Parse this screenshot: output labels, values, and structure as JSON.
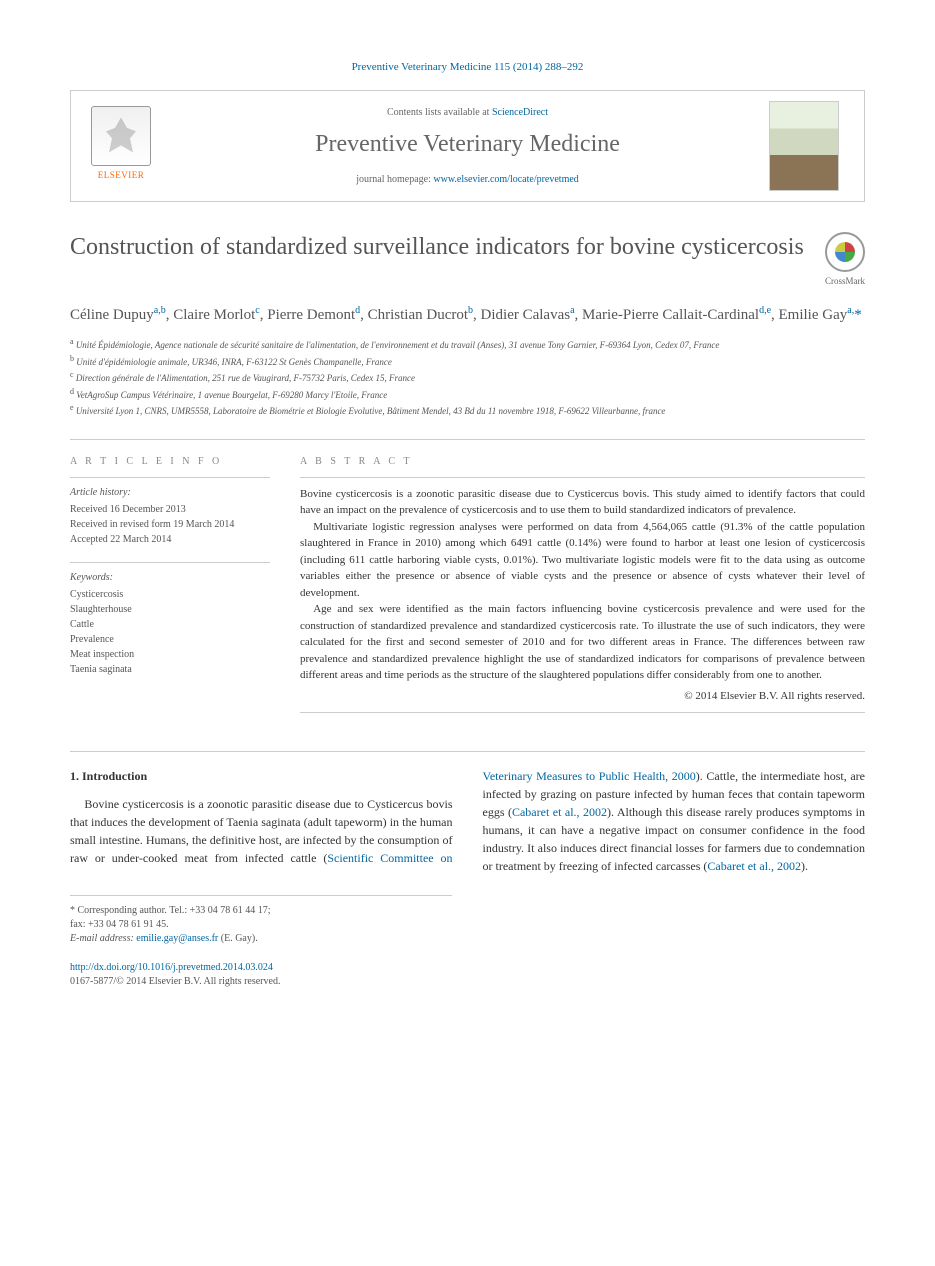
{
  "citation": "Preventive Veterinary Medicine 115 (2014) 288–292",
  "banner": {
    "contents_prefix": "Contents lists available at ",
    "contents_link": "ScienceDirect",
    "journal": "Preventive Veterinary Medicine",
    "homepage_prefix": "journal homepage: ",
    "homepage_url": "www.elsevier.com/locate/prevetmed",
    "publisher": "ELSEVIER"
  },
  "crossmark": "CrossMark",
  "title": "Construction of standardized surveillance indicators for bovine cysticercosis",
  "authors_html": "Céline Dupuy<sup>a,b</sup>, Claire Morlot<sup>c</sup>, Pierre Demont<sup>d</sup>, Christian Ducrot<sup>b</sup>, Didier Calavas<sup>a</sup>, Marie-Pierre Callait-Cardinal<sup>d,e</sup>, Emilie Gay<sup>a,</sup><span class='ast'>*</span>",
  "affiliations": [
    "a Unité Épidémiologie, Agence nationale de sécurité sanitaire de l'alimentation, de l'environnement et du travail (Anses), 31 avenue Tony Garnier, F-69364 Lyon, Cedex 07, France",
    "b Unité d'épidémiologie animale, UR346, INRA, F-63122 St Genès Champanelle, France",
    "c Direction générale de l'Alimentation, 251 rue de Vaugirard, F-75732 Paris, Cedex 15, France",
    "d VetAgroSup Campus Vétérinaire, 1 avenue Bourgelat, F-69280 Marcy l'Etoile, France",
    "e Université Lyon 1, CNRS, UMR5558, Laboratoire de Biométrie et Biologie Evolutive, Bâtiment Mendel, 43 Bd du 11 novembre 1918, F-69622 Villeurbanne, france"
  ],
  "article_info": {
    "heading": "A R T I C L E   I N F O",
    "history_label": "Article history:",
    "history": [
      "Received 16 December 2013",
      "Received in revised form 19 March 2014",
      "Accepted 22 March 2014"
    ],
    "keywords_label": "Keywords:",
    "keywords": [
      "Cysticercosis",
      "Slaughterhouse",
      "Cattle",
      "Prevalence",
      "Meat inspection",
      "Taenia saginata"
    ]
  },
  "abstract": {
    "heading": "A B S T R A C T",
    "paragraphs": [
      "Bovine cysticercosis is a zoonotic parasitic disease due to Cysticercus bovis. This study aimed to identify factors that could have an impact on the prevalence of cysticercosis and to use them to build standardized indicators of prevalence.",
      "Multivariate logistic regression analyses were performed on data from 4,564,065 cattle (91.3% of the cattle population slaughtered in France in 2010) among which 6491 cattle (0.14%) were found to harbor at least one lesion of cysticercosis (including 611 cattle harboring viable cysts, 0.01%). Two multivariate logistic models were fit to the data using as outcome variables either the presence or absence of viable cysts and the presence or absence of cysts whatever their level of development.",
      "Age and sex were identified as the main factors influencing bovine cysticercosis prevalence and were used for the construction of standardized prevalence and standardized cysticercosis rate. To illustrate the use of such indicators, they were calculated for the first and second semester of 2010 and for two different areas in France. The differences between raw prevalence and standardized prevalence highlight the use of standardized indicators for comparisons of prevalence between different areas and time periods as the structure of the slaughtered populations differ considerably from one to another."
    ],
    "copyright": "© 2014 Elsevier B.V. All rights reserved."
  },
  "body": {
    "section_number": "1.",
    "section_title": "Introduction",
    "text_parts": [
      "Bovine cysticercosis is a zoonotic parasitic disease due to Cysticercus bovis that induces the development of Taenia saginata (adult tapeworm) in the human small intestine. Humans, the definitive host, are infected by the ",
      "consumption of raw or under-cooked meat from infected cattle (",
      "Scientific Committee on Veterinary Measures to Public Health, 2000",
      "). Cattle, the intermediate host, are infected by grazing on pasture infected by human feces that contain tapeworm eggs (",
      "Cabaret et al., 2002",
      "). Although this disease rarely produces symptoms in humans, it can have a negative impact on consumer confidence in the food industry. It also induces direct financial losses for farmers due to condemnation or treatment by freezing of infected carcasses (",
      "Cabaret et al., 2002",
      ")."
    ]
  },
  "footnote": {
    "corresponding": "* Corresponding author. Tel.: +33 04 78 61 44 17;",
    "fax": "fax: +33 04 78 61 91 45.",
    "email_label": "E-mail address: ",
    "email": "emilie.gay@anses.fr",
    "email_suffix": " (E. Gay)."
  },
  "doi": {
    "url": "http://dx.doi.org/10.1016/j.prevetmed.2014.03.024",
    "issn_copyright": "0167-5877/© 2014 Elsevier B.V. All rights reserved."
  },
  "colors": {
    "link": "#0066a1",
    "text": "#333333",
    "muted": "#666666",
    "elsevier_orange": "#ff6600"
  }
}
